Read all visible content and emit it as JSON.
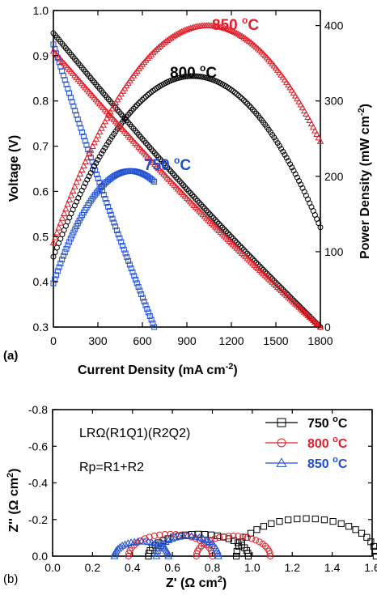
{
  "chart_data": [
    {
      "type": "line",
      "panel_label": "(a)",
      "xlabel": "Current Density  (mA cm",
      "xlabel_sup": "-2",
      "xlabel_end": ")",
      "ylabel": "Voltage (V)",
      "y2label": "Power Density (mW cm",
      "y2label_sup": "-2",
      "y2label_end": ")",
      "xlim": [
        0,
        1800
      ],
      "ylim": [
        0.3,
        1.0
      ],
      "y2lim": [
        0,
        420
      ],
      "xticks": [
        0,
        300,
        600,
        900,
        1200,
        1500,
        1800
      ],
      "yticks": [
        0.3,
        0.4,
        0.5,
        0.6,
        0.7,
        0.8,
        0.9,
        1.0
      ],
      "y2ticks": [
        0,
        100,
        200,
        300,
        400
      ],
      "series": [
        {
          "name": "750",
          "color": "#1f4fd0",
          "marker": "square",
          "ocv": 0.925,
          "imax": 680,
          "voltage_end": 0.3,
          "pmax": 207,
          "ipeak": 520
        },
        {
          "name": "800",
          "color": "#000000",
          "marker": "circle",
          "ocv": 0.95,
          "imax": 1800,
          "voltage_end": 0.3,
          "pmax": 333,
          "ipeak": 940
        },
        {
          "name": "850",
          "color": "#e0202a",
          "marker": "triangle",
          "ocv": 0.91,
          "imax": 1800,
          "voltage_end": 0.3,
          "pmax": 400,
          "ipeak": 1040
        }
      ],
      "annotations": [
        {
          "text": "850 ",
          "sup": "o",
          "end": "C",
          "color": "#e0202a"
        },
        {
          "text": "800 ",
          "sup": "o",
          "end": "C",
          "color": "#000000"
        },
        {
          "text": "750 ",
          "sup": "o",
          "end": "C",
          "color": "#1f4fd0"
        }
      ]
    },
    {
      "type": "scatter",
      "panel_label": "(b)",
      "xlabel": "Z' (",
      "xlabel_omega": "Ω",
      "xlabel_mid": " cm",
      "xlabel_sup": "2",
      "xlabel_end": ")",
      "ylabel": "Z'' (",
      "ylabel_omega": "Ω",
      "ylabel_mid": " cm",
      "ylabel_sup": "2",
      "ylabel_end": ")",
      "xlim": [
        0.0,
        1.6
      ],
      "ylim": [
        0.0,
        -0.8
      ],
      "xticks": [
        "0.0",
        "0.2",
        "0.4",
        "0.6",
        "0.8",
        "1.0",
        "1.2",
        "1.4",
        "1.6"
      ],
      "yticks": [
        "0.0",
        "-0.2",
        "-0.4",
        "-0.6",
        "-0.8"
      ],
      "circuit_text": "LRΩ(R1Q1)(R2Q2)",
      "rp_text": "Rp=R1+R2",
      "legend_position": "top-right",
      "series": [
        {
          "name": "750 ",
          "sup": "o",
          "end": "C",
          "color": "#000000",
          "marker": "square",
          "arcs": [
            {
              "x0": 0.48,
              "x1": 0.98,
              "h": 0.12
            },
            {
              "x0": 0.92,
              "x1": 1.62,
              "h": 0.205
            }
          ]
        },
        {
          "name": "800 ",
          "sup": "o",
          "end": "C",
          "color": "#e0202a",
          "marker": "circle",
          "arcs": [
            {
              "x0": 0.38,
              "x1": 0.8,
              "h": 0.12
            },
            {
              "x0": 0.72,
              "x1": 1.09,
              "h": 0.11
            }
          ]
        },
        {
          "name": "850 ",
          "sup": "o",
          "end": "C",
          "color": "#1f4fd0",
          "marker": "triangle",
          "arcs": [
            {
              "x0": 0.31,
              "x1": 0.58,
              "h": 0.08
            },
            {
              "x0": 0.52,
              "x1": 0.83,
              "h": 0.11
            }
          ]
        }
      ]
    }
  ]
}
